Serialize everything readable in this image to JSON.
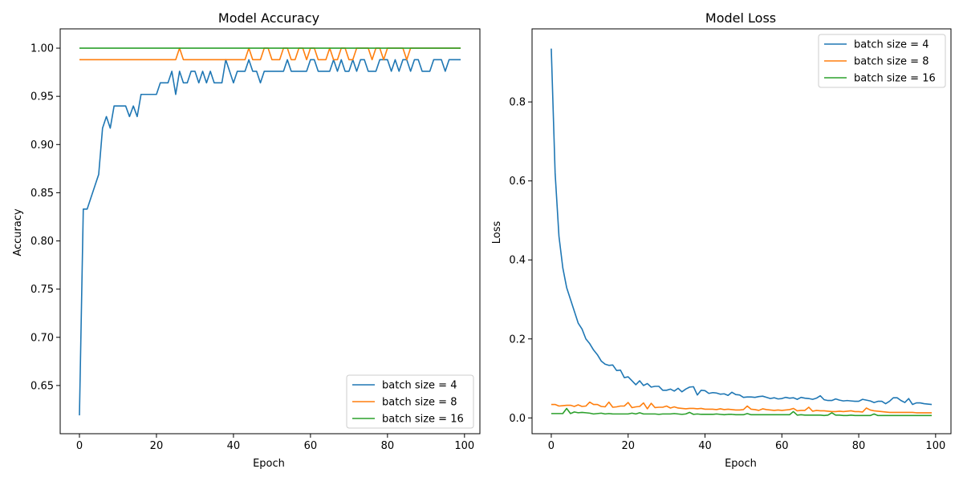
{
  "chart_data": [
    {
      "type": "line",
      "title": "Model Accuracy",
      "xlabel": "Epoch",
      "ylabel": "Accuracy",
      "xlim": [
        -5,
        104
      ],
      "ylim": [
        0.6,
        1.02
      ],
      "xticks": [
        0,
        20,
        40,
        60,
        80,
        100
      ],
      "yticks": [
        0.65,
        0.7,
        0.75,
        0.8,
        0.85,
        0.9,
        0.95,
        1.0
      ],
      "ytick_labels": [
        "0.65",
        "0.70",
        "0.75",
        "0.80",
        "0.85",
        "0.90",
        "0.95",
        "1.00"
      ],
      "legend_position": "lower-right",
      "x": [
        0,
        1,
        2,
        3,
        4,
        5,
        6,
        7,
        8,
        9,
        10,
        11,
        12,
        13,
        14,
        15,
        16,
        17,
        18,
        19,
        20,
        21,
        22,
        23,
        24,
        25,
        26,
        27,
        28,
        29,
        30,
        31,
        32,
        33,
        34,
        35,
        36,
        37,
        38,
        39,
        40,
        41,
        42,
        43,
        44,
        45,
        46,
        47,
        48,
        49,
        50,
        51,
        52,
        53,
        54,
        55,
        56,
        57,
        58,
        59,
        60,
        61,
        62,
        63,
        64,
        65,
        66,
        67,
        68,
        69,
        70,
        71,
        72,
        73,
        74,
        75,
        76,
        77,
        78,
        79,
        80,
        81,
        82,
        83,
        84,
        85,
        86,
        87,
        88,
        89,
        90,
        91,
        92,
        93,
        94,
        95,
        96,
        97,
        98,
        99
      ],
      "series": [
        {
          "name": "batch size = 4",
          "color": "#1f77b4",
          "values": [
            0.619,
            0.833,
            0.833,
            0.845,
            0.857,
            0.869,
            0.917,
            0.929,
            0.917,
            0.94,
            0.94,
            0.94,
            0.94,
            0.929,
            0.94,
            0.929,
            0.952,
            0.952,
            0.952,
            0.952,
            0.952,
            0.964,
            0.964,
            0.964,
            0.976,
            0.952,
            0.976,
            0.964,
            0.964,
            0.976,
            0.976,
            0.964,
            0.976,
            0.964,
            0.976,
            0.964,
            0.964,
            0.964,
            0.988,
            0.976,
            0.964,
            0.976,
            0.976,
            0.976,
            0.988,
            0.976,
            0.976,
            0.964,
            0.976,
            0.976,
            0.976,
            0.976,
            0.976,
            0.976,
            0.988,
            0.976,
            0.976,
            0.976,
            0.976,
            0.976,
            0.988,
            0.988,
            0.976,
            0.976,
            0.976,
            0.976,
            0.988,
            0.976,
            0.988,
            0.976,
            0.976,
            0.988,
            0.976,
            0.988,
            0.988,
            0.976,
            0.976,
            0.976,
            0.988,
            0.988,
            0.988,
            0.976,
            0.988,
            0.976,
            0.988,
            0.988,
            0.976,
            0.988,
            0.988,
            0.976,
            0.976,
            0.976,
            0.988,
            0.988,
            0.988,
            0.976,
            0.988,
            0.988,
            0.988,
            0.988
          ]
        },
        {
          "name": "batch size = 8",
          "color": "#ff7f0e",
          "values": [
            0.988,
            0.988,
            0.988,
            0.988,
            0.988,
            0.988,
            0.988,
            0.988,
            0.988,
            0.988,
            0.988,
            0.988,
            0.988,
            0.988,
            0.988,
            0.988,
            0.988,
            0.988,
            0.988,
            0.988,
            0.988,
            0.988,
            0.988,
            0.988,
            0.988,
            0.988,
            1.0,
            0.988,
            0.988,
            0.988,
            0.988,
            0.988,
            0.988,
            0.988,
            0.988,
            0.988,
            0.988,
            0.988,
            0.988,
            0.988,
            0.988,
            0.988,
            0.988,
            0.988,
            1.0,
            0.988,
            0.988,
            0.988,
            1.0,
            1.0,
            0.988,
            0.988,
            0.988,
            1.0,
            1.0,
            0.988,
            0.988,
            1.0,
            1.0,
            0.988,
            1.0,
            1.0,
            0.988,
            0.988,
            0.988,
            1.0,
            0.988,
            0.988,
            1.0,
            1.0,
            0.988,
            0.988,
            1.0,
            1.0,
            1.0,
            1.0,
            0.988,
            1.0,
            1.0,
            0.988,
            1.0,
            1.0,
            1.0,
            1.0,
            1.0,
            0.988,
            1.0,
            1.0,
            1.0,
            1.0,
            1.0,
            1.0,
            1.0,
            1.0,
            1.0,
            1.0,
            1.0,
            1.0,
            1.0,
            1.0
          ]
        },
        {
          "name": "batch size = 16",
          "color": "#2ca02c",
          "values": [
            1.0,
            1.0,
            1.0,
            1.0,
            1.0,
            1.0,
            1.0,
            1.0,
            1.0,
            1.0,
            1.0,
            1.0,
            1.0,
            1.0,
            1.0,
            1.0,
            1.0,
            1.0,
            1.0,
            1.0,
            1.0,
            1.0,
            1.0,
            1.0,
            1.0,
            1.0,
            1.0,
            1.0,
            1.0,
            1.0,
            1.0,
            1.0,
            1.0,
            1.0,
            1.0,
            1.0,
            1.0,
            1.0,
            1.0,
            1.0,
            1.0,
            1.0,
            1.0,
            1.0,
            1.0,
            1.0,
            1.0,
            1.0,
            1.0,
            1.0,
            1.0,
            1.0,
            1.0,
            1.0,
            1.0,
            1.0,
            1.0,
            1.0,
            1.0,
            1.0,
            1.0,
            1.0,
            1.0,
            1.0,
            1.0,
            1.0,
            1.0,
            1.0,
            1.0,
            1.0,
            1.0,
            1.0,
            1.0,
            1.0,
            1.0,
            1.0,
            1.0,
            1.0,
            1.0,
            1.0,
            1.0,
            1.0,
            1.0,
            1.0,
            1.0,
            1.0,
            1.0,
            1.0,
            1.0,
            1.0,
            1.0,
            1.0,
            1.0,
            1.0,
            1.0,
            1.0,
            1.0,
            1.0,
            1.0,
            1.0
          ]
        }
      ]
    },
    {
      "type": "line",
      "title": "Model Loss",
      "xlabel": "Epoch",
      "ylabel": "Loss",
      "xlim": [
        -5,
        104
      ],
      "ylim": [
        -0.04,
        0.985
      ],
      "xticks": [
        0,
        20,
        40,
        60,
        80,
        100
      ],
      "yticks": [
        0.0,
        0.2,
        0.4,
        0.6,
        0.8
      ],
      "ytick_labels": [
        "0.0",
        "0.2",
        "0.4",
        "0.6",
        "0.8"
      ],
      "legend_position": "upper-right",
      "x": [
        0,
        1,
        2,
        3,
        4,
        5,
        6,
        7,
        8,
        9,
        10,
        11,
        12,
        13,
        14,
        15,
        16,
        17,
        18,
        19,
        20,
        21,
        22,
        23,
        24,
        25,
        26,
        27,
        28,
        29,
        30,
        31,
        32,
        33,
        34,
        35,
        36,
        37,
        38,
        39,
        40,
        41,
        42,
        43,
        44,
        45,
        46,
        47,
        48,
        49,
        50,
        51,
        52,
        53,
        54,
        55,
        56,
        57,
        58,
        59,
        60,
        61,
        62,
        63,
        64,
        65,
        66,
        67,
        68,
        69,
        70,
        71,
        72,
        73,
        74,
        75,
        76,
        77,
        78,
        79,
        80,
        81,
        82,
        83,
        84,
        85,
        86,
        87,
        88,
        89,
        90,
        91,
        92,
        93,
        94,
        95,
        96,
        97,
        98,
        99
      ],
      "series": [
        {
          "name": "batch size = 4",
          "color": "#1f77b4",
          "values": [
            0.935,
            0.62,
            0.46,
            0.38,
            0.33,
            0.3,
            0.27,
            0.24,
            0.225,
            0.2,
            0.188,
            0.172,
            0.16,
            0.144,
            0.136,
            0.133,
            0.134,
            0.12,
            0.121,
            0.102,
            0.104,
            0.094,
            0.084,
            0.094,
            0.082,
            0.087,
            0.078,
            0.08,
            0.08,
            0.07,
            0.07,
            0.073,
            0.068,
            0.075,
            0.066,
            0.073,
            0.078,
            0.079,
            0.058,
            0.07,
            0.069,
            0.062,
            0.064,
            0.063,
            0.06,
            0.061,
            0.057,
            0.065,
            0.059,
            0.058,
            0.052,
            0.053,
            0.053,
            0.052,
            0.054,
            0.055,
            0.052,
            0.049,
            0.051,
            0.048,
            0.049,
            0.052,
            0.05,
            0.051,
            0.047,
            0.052,
            0.05,
            0.049,
            0.047,
            0.05,
            0.056,
            0.046,
            0.044,
            0.044,
            0.048,
            0.045,
            0.043,
            0.044,
            0.043,
            0.042,
            0.042,
            0.047,
            0.045,
            0.043,
            0.039,
            0.042,
            0.042,
            0.036,
            0.042,
            0.051,
            0.051,
            0.044,
            0.039,
            0.049,
            0.034,
            0.038,
            0.038,
            0.036,
            0.035,
            0.034
          ]
        },
        {
          "name": "batch size = 8",
          "color": "#ff7f0e",
          "values": [
            0.034,
            0.034,
            0.03,
            0.031,
            0.032,
            0.032,
            0.029,
            0.033,
            0.029,
            0.03,
            0.04,
            0.034,
            0.034,
            0.029,
            0.028,
            0.04,
            0.027,
            0.028,
            0.03,
            0.03,
            0.039,
            0.026,
            0.028,
            0.029,
            0.038,
            0.023,
            0.037,
            0.026,
            0.027,
            0.027,
            0.03,
            0.025,
            0.028,
            0.025,
            0.024,
            0.023,
            0.024,
            0.024,
            0.023,
            0.024,
            0.022,
            0.022,
            0.022,
            0.021,
            0.023,
            0.021,
            0.022,
            0.021,
            0.02,
            0.02,
            0.021,
            0.03,
            0.022,
            0.021,
            0.019,
            0.023,
            0.021,
            0.02,
            0.019,
            0.02,
            0.019,
            0.02,
            0.021,
            0.024,
            0.018,
            0.019,
            0.019,
            0.027,
            0.017,
            0.019,
            0.018,
            0.018,
            0.017,
            0.016,
            0.016,
            0.017,
            0.016,
            0.017,
            0.018,
            0.016,
            0.016,
            0.015,
            0.025,
            0.02,
            0.018,
            0.017,
            0.016,
            0.015,
            0.014,
            0.014,
            0.014,
            0.014,
            0.014,
            0.014,
            0.014,
            0.013,
            0.013,
            0.013,
            0.013,
            0.013
          ]
        },
        {
          "name": "batch size = 16",
          "color": "#2ca02c",
          "values": [
            0.011,
            0.011,
            0.011,
            0.011,
            0.024,
            0.011,
            0.015,
            0.013,
            0.014,
            0.013,
            0.012,
            0.01,
            0.011,
            0.012,
            0.01,
            0.011,
            0.01,
            0.01,
            0.01,
            0.01,
            0.01,
            0.012,
            0.01,
            0.013,
            0.01,
            0.01,
            0.01,
            0.01,
            0.009,
            0.01,
            0.01,
            0.01,
            0.011,
            0.01,
            0.009,
            0.01,
            0.014,
            0.009,
            0.01,
            0.009,
            0.009,
            0.009,
            0.009,
            0.01,
            0.009,
            0.008,
            0.009,
            0.009,
            0.008,
            0.008,
            0.008,
            0.011,
            0.008,
            0.008,
            0.008,
            0.008,
            0.008,
            0.008,
            0.008,
            0.008,
            0.008,
            0.008,
            0.008,
            0.016,
            0.007,
            0.008,
            0.007,
            0.007,
            0.007,
            0.007,
            0.007,
            0.006,
            0.007,
            0.013,
            0.007,
            0.007,
            0.006,
            0.006,
            0.007,
            0.006,
            0.006,
            0.006,
            0.006,
            0.006,
            0.01,
            0.006,
            0.006,
            0.006,
            0.006,
            0.006,
            0.006,
            0.006,
            0.006,
            0.006,
            0.006,
            0.006,
            0.006,
            0.006,
            0.006,
            0.006
          ]
        }
      ]
    }
  ]
}
